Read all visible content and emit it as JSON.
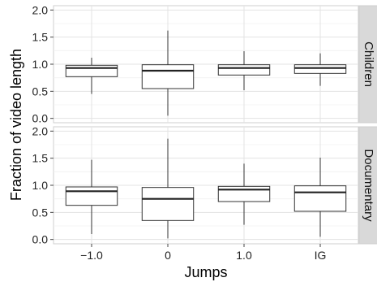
{
  "chart_data": {
    "type": "boxplot",
    "xlabel": "Jumps",
    "ylabel": "Fraction of video length",
    "categories": [
      "-1.0",
      "0",
      "1.0",
      "IG"
    ],
    "category_labels": [
      "−1.0",
      "0",
      "1.0",
      "IG"
    ],
    "ylim": [
      -0.08,
      2.08
    ],
    "yticks": [
      0.0,
      0.5,
      1.0,
      1.5,
      2.0
    ],
    "ytick_labels": [
      "0.0",
      "0.5",
      "1.0",
      "1.5",
      "2.0"
    ],
    "grid": true,
    "facets": [
      {
        "label": "Children",
        "boxes": [
          {
            "category": "-1.0",
            "min": 0.45,
            "q1": 0.77,
            "median": 0.93,
            "q3": 0.98,
            "max": 1.12
          },
          {
            "category": "0",
            "min": 0.05,
            "q1": 0.55,
            "median": 0.88,
            "q3": 0.99,
            "max": 1.62
          },
          {
            "category": "1.0",
            "min": 0.52,
            "q1": 0.8,
            "median": 0.93,
            "q3": 0.99,
            "max": 1.24
          },
          {
            "category": "IG",
            "min": 0.6,
            "q1": 0.83,
            "median": 0.93,
            "q3": 0.99,
            "max": 1.2
          }
        ]
      },
      {
        "label": "Documentary",
        "boxes": [
          {
            "category": "-1.0",
            "min": 0.1,
            "q1": 0.63,
            "median": 0.89,
            "q3": 0.97,
            "max": 1.47
          },
          {
            "category": "0",
            "min": 0.02,
            "q1": 0.35,
            "median": 0.75,
            "q3": 0.96,
            "max": 1.86
          },
          {
            "category": "1.0",
            "min": 0.27,
            "q1": 0.7,
            "median": 0.92,
            "q3": 0.98,
            "max": 1.4
          },
          {
            "category": "IG",
            "min": 0.05,
            "q1": 0.52,
            "median": 0.87,
            "q3": 0.99,
            "max": 1.51
          }
        ]
      }
    ]
  }
}
